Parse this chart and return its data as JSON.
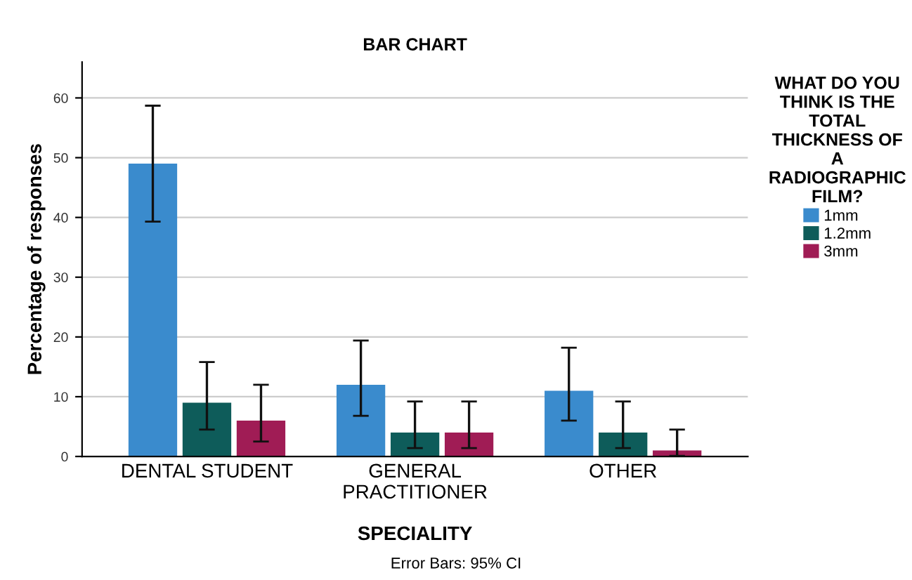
{
  "chart_data": {
    "type": "bar",
    "title": "BAR CHART",
    "xlabel": "SPECIALITY",
    "ylabel": "Percentage of responses",
    "legend_title": "WHAT DO YOU\nTHINK IS THE\nTOTAL\nTHICKNESS OF\nA\nRADIOGRAPHIC\nFILM?",
    "categories": [
      "DENTAL STUDENT",
      "GENERAL\nPRACTITIONER",
      "OTHER"
    ],
    "series": [
      {
        "name": "1mm",
        "color": "#3a8bcd",
        "values": [
          49,
          12,
          11
        ],
        "errors": [
          [
            39.3,
            58.7
          ],
          [
            6.8,
            19.4
          ],
          [
            6,
            18.2
          ]
        ]
      },
      {
        "name": "1.2mm",
        "color": "#0e5c5a",
        "values": [
          9,
          4,
          4
        ],
        "errors": [
          [
            4.5,
            15.8
          ],
          [
            1.4,
            9.2
          ],
          [
            1.4,
            9.2
          ]
        ]
      },
      {
        "name": "3mm",
        "color": "#a01c55",
        "values": [
          6,
          4,
          1
        ],
        "errors": [
          [
            2.5,
            12
          ],
          [
            1.4,
            9.2
          ],
          [
            0.1,
            4.5
          ]
        ]
      }
    ],
    "ylim": [
      0,
      66
    ],
    "yticks": [
      0,
      10,
      20,
      30,
      40,
      50,
      60
    ],
    "grid": "y",
    "legend": "right",
    "annotations": [
      "Error Bars: 95% CI"
    ]
  }
}
